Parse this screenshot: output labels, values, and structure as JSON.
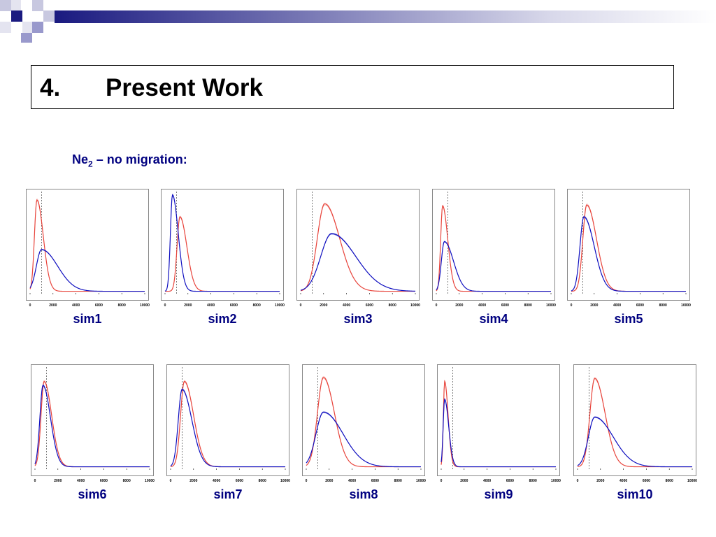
{
  "slide": {
    "title_number": "4.",
    "title_text": "Present Work",
    "subtitle_main": "Ne",
    "subtitle_sub": "2",
    "subtitle_rest": " – no migration:"
  },
  "colors": {
    "red_curve": "#e8453c",
    "blue_curve": "#1010c0",
    "accent": "#000080",
    "deco_dark": "#1a1a80",
    "deco_light": "#9999cc"
  },
  "chart_data": [
    {
      "type": "line",
      "label": "sim1",
      "xlim": [
        0,
        10000
      ],
      "xticks": [
        "0",
        "2000",
        "4000",
        "6000",
        "8000",
        "10000"
      ],
      "vline": 1000,
      "series": [
        {
          "color": "#e8453c",
          "shape": {
            "mode": 600,
            "peak": 0.92,
            "sl": 220,
            "sr": 550
          }
        },
        {
          "color": "#1010c0",
          "shape": {
            "mode": 1000,
            "peak": 0.42,
            "sl": 450,
            "sr": 1400
          }
        }
      ]
    },
    {
      "type": "line",
      "label": "sim2",
      "xlim": [
        0,
        10000
      ],
      "xticks": [
        "0",
        "2000",
        "4000",
        "6000",
        "8000",
        "10000"
      ],
      "vline": 1000,
      "series": [
        {
          "color": "#e8453c",
          "shape": {
            "mode": 1300,
            "peak": 0.75,
            "sl": 250,
            "sr": 600
          }
        },
        {
          "color": "#1010c0",
          "shape": {
            "mode": 650,
            "peak": 0.97,
            "sl": 180,
            "sr": 500
          }
        }
      ]
    },
    {
      "type": "line",
      "label": "sim3",
      "xlim": [
        0,
        10000
      ],
      "xticks": [
        "0",
        "2000",
        "4000",
        "6000",
        "8000",
        "10000"
      ],
      "vline": 1000,
      "series": [
        {
          "color": "#e8453c",
          "shape": {
            "mode": 2100,
            "peak": 0.88,
            "sl": 650,
            "sr": 1300
          }
        },
        {
          "color": "#1010c0",
          "shape": {
            "mode": 2700,
            "peak": 0.58,
            "sl": 950,
            "sr": 2100
          }
        }
      ]
    },
    {
      "type": "line",
      "label": "sim4",
      "xlim": [
        0,
        10000
      ],
      "xticks": [
        "0",
        "2000",
        "4000",
        "6000",
        "8000",
        "10000"
      ],
      "vline": 1000,
      "series": [
        {
          "color": "#e8453c",
          "shape": {
            "mode": 550,
            "peak": 0.86,
            "sl": 170,
            "sr": 450
          }
        },
        {
          "color": "#1010c0",
          "shape": {
            "mode": 700,
            "peak": 0.5,
            "sl": 260,
            "sr": 800
          }
        }
      ]
    },
    {
      "type": "line",
      "label": "sim5",
      "xlim": [
        0,
        10000
      ],
      "xticks": [
        "0",
        "2000",
        "4000",
        "6000",
        "8000",
        "10000"
      ],
      "vline": 1000,
      "series": [
        {
          "color": "#e8453c",
          "shape": {
            "mode": 1350,
            "peak": 0.87,
            "sl": 340,
            "sr": 850
          }
        },
        {
          "color": "#1010c0",
          "shape": {
            "mode": 1100,
            "peak": 0.75,
            "sl": 340,
            "sr": 900
          }
        }
      ]
    },
    {
      "type": "line",
      "label": "sim6",
      "xlim": [
        0,
        10000
      ],
      "xticks": [
        "0",
        "2000",
        "4000",
        "6000",
        "8000",
        "10000"
      ],
      "vline": 1000,
      "series": [
        {
          "color": "#e8453c",
          "shape": {
            "mode": 800,
            "peak": 0.86,
            "sl": 270,
            "sr": 650
          }
        },
        {
          "color": "#1010c0",
          "shape": {
            "mode": 700,
            "peak": 0.82,
            "sl": 270,
            "sr": 650
          }
        }
      ]
    },
    {
      "type": "line",
      "label": "sim7",
      "xlim": [
        0,
        10000
      ],
      "xticks": [
        "0",
        "2000",
        "4000",
        "6000",
        "8000",
        "10000"
      ],
      "vline": 1000,
      "series": [
        {
          "color": "#e8453c",
          "shape": {
            "mode": 1200,
            "peak": 0.86,
            "sl": 330,
            "sr": 800
          }
        },
        {
          "color": "#1010c0",
          "shape": {
            "mode": 1000,
            "peak": 0.78,
            "sl": 330,
            "sr": 850
          }
        }
      ]
    },
    {
      "type": "line",
      "label": "sim8",
      "xlim": [
        0,
        10000
      ],
      "xticks": [
        "0",
        "2000",
        "4000",
        "6000",
        "8000",
        "10000"
      ],
      "vline": 1000,
      "series": [
        {
          "color": "#e8453c",
          "shape": {
            "mode": 1500,
            "peak": 0.9,
            "sl": 520,
            "sr": 950
          }
        },
        {
          "color": "#1010c0",
          "shape": {
            "mode": 1500,
            "peak": 0.55,
            "sl": 650,
            "sr": 1700
          }
        }
      ]
    },
    {
      "type": "line",
      "label": "sim9",
      "xlim": [
        0,
        10000
      ],
      "xticks": [
        "0",
        "2000",
        "4000",
        "6000",
        "8000",
        "10000"
      ],
      "vline": 1000,
      "series": [
        {
          "color": "#e8453c",
          "shape": {
            "mode": 300,
            "peak": 0.86,
            "sl": 110,
            "sr": 300
          }
        },
        {
          "color": "#1010c0",
          "shape": {
            "mode": 300,
            "peak": 0.68,
            "sl": 130,
            "sr": 350
          }
        }
      ]
    },
    {
      "type": "line",
      "label": "sim10",
      "xlim": [
        0,
        10000
      ],
      "xticks": [
        "0",
        "2000",
        "4000",
        "6000",
        "8000",
        "10000"
      ],
      "vline": 1000,
      "series": [
        {
          "color": "#e8453c",
          "shape": {
            "mode": 1500,
            "peak": 0.89,
            "sl": 420,
            "sr": 900
          }
        },
        {
          "color": "#1010c0",
          "shape": {
            "mode": 1500,
            "peak": 0.5,
            "sl": 550,
            "sr": 1600
          }
        }
      ]
    }
  ]
}
